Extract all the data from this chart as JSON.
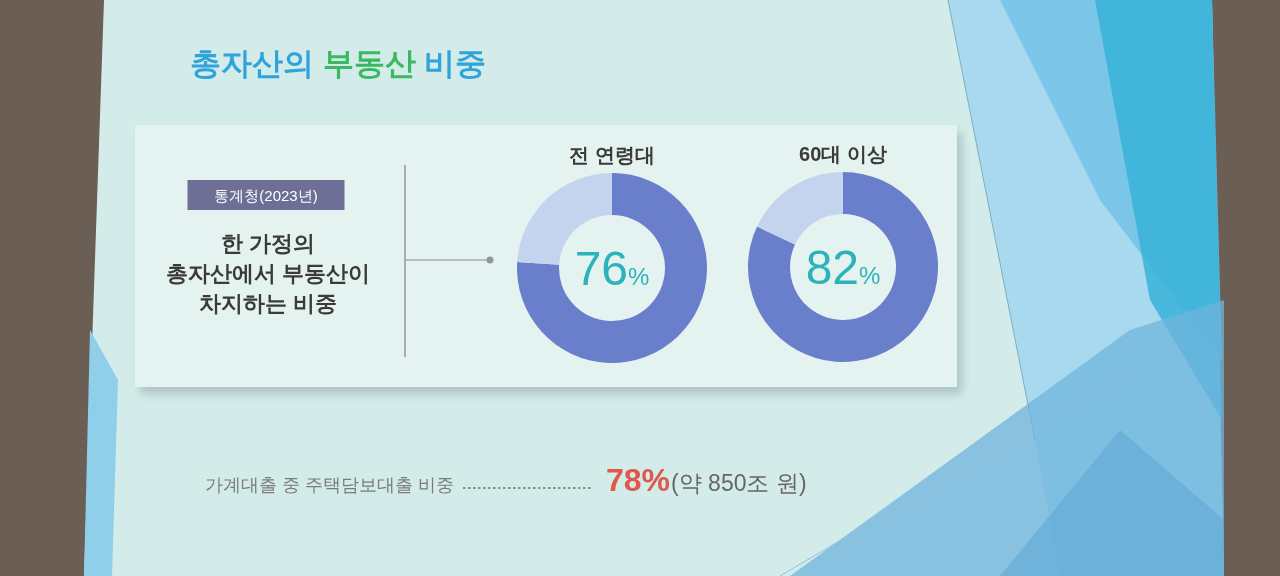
{
  "chart_data": [
    {
      "type": "other",
      "title": "총자산의 부동산 비중",
      "annotations": [
        "통계청(2023년)",
        "한 가정의\n총자산에서 부동산이\n차지하는 비중"
      ]
    },
    {
      "type": "donut",
      "title": "전 연령대",
      "categories": [
        null,
        null
      ],
      "values": [
        76,
        24
      ],
      "colors": [
        "#6a7fcc",
        "#c4d4ef"
      ],
      "value_labels": [
        "76%",
        null
      ]
    },
    {
      "type": "donut",
      "title": "60대 이상",
      "categories": [
        null,
        null
      ],
      "values": [
        82,
        18
      ],
      "colors": [
        "#6a7fcc",
        "#c4d4ef"
      ],
      "value_labels": [
        "82%",
        null
      ]
    },
    {
      "type": "other",
      "annotations": [
        "가계대출 중 주택담보대출 비중",
        "78%",
        "(약 850조 원)"
      ]
    }
  ]
}
